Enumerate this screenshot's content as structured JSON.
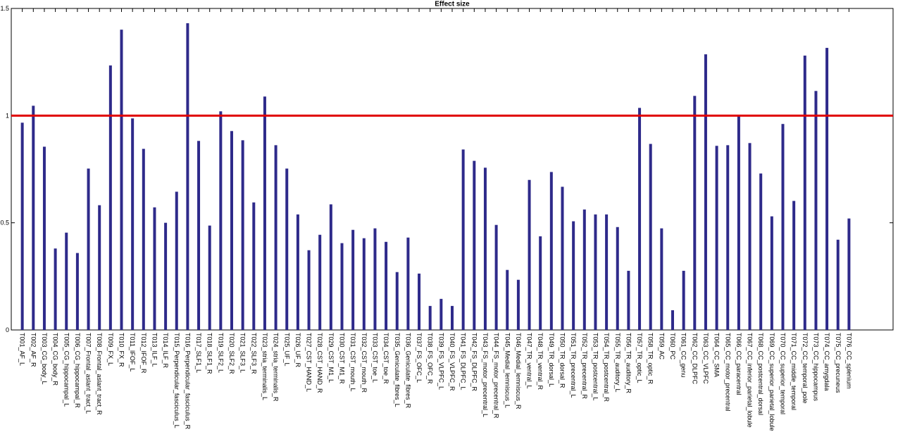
{
  "chart_data": {
    "type": "bar",
    "title": "Effect size",
    "categories": [
      "T001_AF_L",
      "T002_AF_R",
      "T003_CG_body_L",
      "T004_CG_body_R",
      "T005_CG_hippocampal_L",
      "T006_CG_hippocampal_R",
      "T007_Frontal_aslant_tract_L",
      "T008_Frontal_aslant_tract_R",
      "T009_FX_L",
      "T010_FX_R",
      "T011_IFOF_L",
      "T012_IFOF_R",
      "T013_ILF_L",
      "T014_ILF_R",
      "T015_Perpendicular_fasciculus_L",
      "T016_Perpendicular_fasciculus_R",
      "T017_SLF1_L",
      "T018_SLF1_R",
      "T019_SLF2_L",
      "T020_SLF2_R",
      "T021_SLF3_L",
      "T022_SLF3_R",
      "T023_stria_terminalis_L",
      "T024_stria_terminalis_R",
      "T025_UF_L",
      "T026_UF_R",
      "T027_CST_HAND_L",
      "T028_CST_HAND_R",
      "T029_CST_M1_L",
      "T030_CST_M1_R",
      "T031_CST_mouth_L",
      "T032_CST_mouth_R",
      "T033_CST_toe_L",
      "T034_CST_toe_R",
      "T035_Geniculate_fibres_L",
      "T036_Geniculate_fibres_R",
      "T037_FS_OFC_L",
      "T038_FS_OFC_R",
      "T039_FS_VLPFC_L",
      "T040_FS_VLPFC_R",
      "T041_FS_DLPFC_L",
      "T042_FS_DLPFC_R",
      "T043_FS_motor_precentral_L",
      "T044_FS_motor_precentral_R",
      "T045_Medial_lemniscus_L",
      "T046_Medial_lemniscus_R",
      "T047_TR_ventral_L",
      "T048_TR_ventral_R",
      "T049_TR_dorsal_L",
      "T050_TR_dorsal_R",
      "T051_TR_precentral_L",
      "T052_TR_precentral_R",
      "T053_TR_postcentral_L",
      "T054_TR_postcentral_R",
      "T055_TR_auditory_L",
      "T056_TR_auditory_R",
      "T057_TR_optic_L",
      "T058_TR_optic_R",
      "T059_AC",
      "T060_PC",
      "T061_CC_genu",
      "T062_CC_DLPFC",
      "T063_CC_VLPFC",
      "T064_CC_SMA",
      "T065_CC_motor_precentral",
      "T066_CC_paracentral",
      "T067_CC_inferior_parietal_lobule",
      "T068_CC_postcentral_dorsal",
      "T069_CC_superior_parietal_lobule",
      "T070_CC_superior_temporal",
      "T071_CC_middle_temporal",
      "T072_CC_temporal_pole",
      "T073_CC_hippocampus",
      "T074_CC_amygdala",
      "T075_CC_precuneus",
      "T076_CC_splenium"
    ],
    "values": [
      0.967,
      1.046,
      0.855,
      0.38,
      0.454,
      0.359,
      0.753,
      0.582,
      1.234,
      1.401,
      0.987,
      0.845,
      0.572,
      0.5,
      0.645,
      1.431,
      0.882,
      0.487,
      1.02,
      0.928,
      0.885,
      0.595,
      1.089,
      0.862,
      0.753,
      0.539,
      0.372,
      0.444,
      0.586,
      0.405,
      0.467,
      0.428,
      0.474,
      0.411,
      0.27,
      0.431,
      0.263,
      0.112,
      0.145,
      0.112,
      0.842,
      0.789,
      0.757,
      0.49,
      0.28,
      0.234,
      0.7,
      0.437,
      0.737,
      0.668,
      0.507,
      0.562,
      0.539,
      0.539,
      0.48,
      0.276,
      1.036,
      0.868,
      0.474,
      0.092,
      0.276,
      1.092,
      1.286,
      0.859,
      0.862,
      1.0,
      0.872,
      0.73,
      0.53,
      0.961,
      0.602,
      1.28,
      1.115,
      1.316,
      0.421,
      0.52
    ],
    "color": "#2e2a8a",
    "ylim": [
      0,
      1.5
    ],
    "yticks": [
      0,
      0.5,
      1,
      1.5
    ],
    "reference_line": 1,
    "reference_color": "#e00000"
  }
}
